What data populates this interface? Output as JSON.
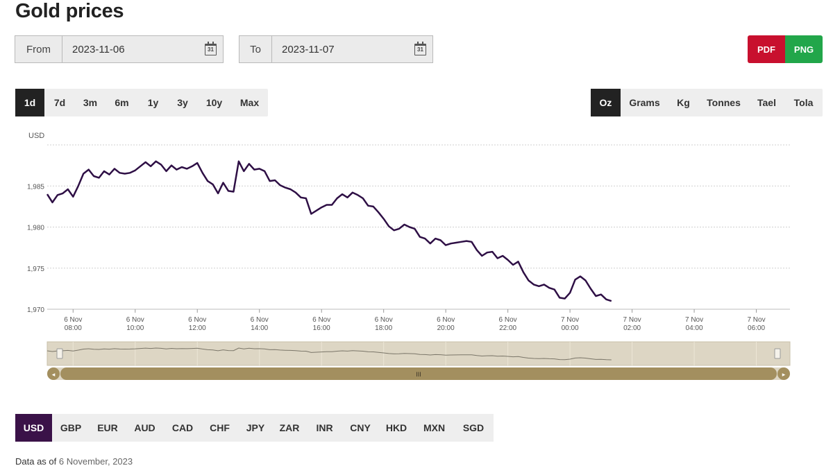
{
  "page": {
    "title": "Gold prices"
  },
  "range": {
    "from_label": "From",
    "from_value": "2023-11-06",
    "to_label": "To",
    "to_value": "2023-11-07",
    "calendar_glyph": "31"
  },
  "export": {
    "pdf": "PDF",
    "png": "PNG"
  },
  "periods": [
    "1d",
    "7d",
    "3m",
    "6m",
    "1y",
    "3y",
    "10y",
    "Max"
  ],
  "active_period": "1d",
  "units": [
    "Oz",
    "Grams",
    "Kg",
    "Tonnes",
    "Tael",
    "Tola"
  ],
  "active_unit": "Oz",
  "currencies": [
    "USD",
    "GBP",
    "EUR",
    "AUD",
    "CAD",
    "CHF",
    "JPY",
    "ZAR",
    "INR",
    "CNY",
    "HKD",
    "MXN",
    "SGD"
  ],
  "active_currency": "USD",
  "footer": {
    "prefix": "Data as of",
    "date": "6 November, 2023"
  },
  "navigator": {
    "handle_glyph": "III",
    "left_arrow": "◂",
    "right_arrow": "▸"
  },
  "chart_data": {
    "type": "line",
    "ylabel": "USD",
    "ylim": [
      1970,
      1990
    ],
    "yticks": [
      1970,
      1975,
      1980,
      1985
    ],
    "ytick_labels": [
      "1,970",
      "1,975",
      "1,980",
      "1,985"
    ],
    "x_start": "6 Nov 07:10",
    "x_end": "7 Nov 07:05",
    "xticks": [
      {
        "t": "6 Nov 08:00",
        "l1": "6 Nov",
        "l2": "08:00"
      },
      {
        "t": "6 Nov 10:00",
        "l1": "6 Nov",
        "l2": "10:00"
      },
      {
        "t": "6 Nov 12:00",
        "l1": "6 Nov",
        "l2": "12:00"
      },
      {
        "t": "6 Nov 14:00",
        "l1": "6 Nov",
        "l2": "14:00"
      },
      {
        "t": "6 Nov 16:00",
        "l1": "6 Nov",
        "l2": "16:00"
      },
      {
        "t": "6 Nov 18:00",
        "l1": "6 Nov",
        "l2": "18:00"
      },
      {
        "t": "6 Nov 20:00",
        "l1": "6 Nov",
        "l2": "20:00"
      },
      {
        "t": "6 Nov 22:00",
        "l1": "6 Nov",
        "l2": "22:00"
      },
      {
        "t": "7 Nov 00:00",
        "l1": "7 Nov",
        "l2": "00:00"
      },
      {
        "t": "7 Nov 02:00",
        "l1": "7 Nov",
        "l2": "02:00"
      },
      {
        "t": "7 Nov 04:00",
        "l1": "7 Nov",
        "l2": "04:00"
      },
      {
        "t": "7 Nov 06:00",
        "l1": "7 Nov",
        "l2": "06:00"
      }
    ],
    "series": [
      {
        "color": "#2e0f45",
        "points": [
          [
            "6 Nov 07:10",
            1984.0
          ],
          [
            "6 Nov 07:20",
            1983.0
          ],
          [
            "6 Nov 07:30",
            1983.9
          ],
          [
            "6 Nov 07:40",
            1984.1
          ],
          [
            "6 Nov 07:50",
            1984.6
          ],
          [
            "6 Nov 08:00",
            1983.7
          ],
          [
            "6 Nov 08:10",
            1985.0
          ],
          [
            "6 Nov 08:20",
            1986.5
          ],
          [
            "6 Nov 08:30",
            1987.0
          ],
          [
            "6 Nov 08:40",
            1986.2
          ],
          [
            "6 Nov 08:50",
            1986.0
          ],
          [
            "6 Nov 09:00",
            1986.8
          ],
          [
            "6 Nov 09:10",
            1986.4
          ],
          [
            "6 Nov 09:20",
            1987.1
          ],
          [
            "6 Nov 09:30",
            1986.6
          ],
          [
            "6 Nov 09:40",
            1986.5
          ],
          [
            "6 Nov 09:50",
            1986.6
          ],
          [
            "6 Nov 10:00",
            1986.9
          ],
          [
            "6 Nov 10:10",
            1987.4
          ],
          [
            "6 Nov 10:20",
            1987.9
          ],
          [
            "6 Nov 10:30",
            1987.4
          ],
          [
            "6 Nov 10:40",
            1988.0
          ],
          [
            "6 Nov 10:50",
            1987.6
          ],
          [
            "6 Nov 11:00",
            1986.8
          ],
          [
            "6 Nov 11:10",
            1987.5
          ],
          [
            "6 Nov 11:20",
            1987.0
          ],
          [
            "6 Nov 11:30",
            1987.3
          ],
          [
            "6 Nov 11:40",
            1987.1
          ],
          [
            "6 Nov 11:50",
            1987.4
          ],
          [
            "6 Nov 12:00",
            1987.8
          ],
          [
            "6 Nov 12:10",
            1986.6
          ],
          [
            "6 Nov 12:20",
            1985.6
          ],
          [
            "6 Nov 12:30",
            1985.2
          ],
          [
            "6 Nov 12:40",
            1984.1
          ],
          [
            "6 Nov 12:50",
            1985.4
          ],
          [
            "6 Nov 13:00",
            1984.4
          ],
          [
            "6 Nov 13:10",
            1984.3
          ],
          [
            "6 Nov 13:20",
            1988.0
          ],
          [
            "6 Nov 13:30",
            1986.8
          ],
          [
            "6 Nov 13:40",
            1987.7
          ],
          [
            "6 Nov 13:50",
            1987.0
          ],
          [
            "6 Nov 14:00",
            1987.1
          ],
          [
            "6 Nov 14:10",
            1986.8
          ],
          [
            "6 Nov 14:20",
            1985.6
          ],
          [
            "6 Nov 14:30",
            1985.7
          ],
          [
            "6 Nov 14:40",
            1985.1
          ],
          [
            "6 Nov 14:50",
            1984.8
          ],
          [
            "6 Nov 15:00",
            1984.6
          ],
          [
            "6 Nov 15:10",
            1984.2
          ],
          [
            "6 Nov 15:20",
            1983.6
          ],
          [
            "6 Nov 15:30",
            1983.5
          ],
          [
            "6 Nov 15:40",
            1981.6
          ],
          [
            "6 Nov 15:50",
            1982.0
          ],
          [
            "6 Nov 16:00",
            1982.4
          ],
          [
            "6 Nov 16:10",
            1982.7
          ],
          [
            "6 Nov 16:20",
            1982.7
          ],
          [
            "6 Nov 16:30",
            1983.5
          ],
          [
            "6 Nov 16:40",
            1984.0
          ],
          [
            "6 Nov 16:50",
            1983.6
          ],
          [
            "6 Nov 17:00",
            1984.2
          ],
          [
            "6 Nov 17:10",
            1983.9
          ],
          [
            "6 Nov 17:20",
            1983.5
          ],
          [
            "6 Nov 17:30",
            1982.6
          ],
          [
            "6 Nov 17:40",
            1982.5
          ],
          [
            "6 Nov 17:50",
            1981.8
          ],
          [
            "6 Nov 18:00",
            1981.0
          ],
          [
            "6 Nov 18:10",
            1980.1
          ],
          [
            "6 Nov 18:20",
            1979.6
          ],
          [
            "6 Nov 18:30",
            1979.8
          ],
          [
            "6 Nov 18:40",
            1980.3
          ],
          [
            "6 Nov 18:50",
            1980.0
          ],
          [
            "6 Nov 19:00",
            1979.8
          ],
          [
            "6 Nov 19:10",
            1978.8
          ],
          [
            "6 Nov 19:20",
            1978.6
          ],
          [
            "6 Nov 19:30",
            1978.0
          ],
          [
            "6 Nov 19:40",
            1978.6
          ],
          [
            "6 Nov 19:50",
            1978.4
          ],
          [
            "6 Nov 20:00",
            1977.8
          ],
          [
            "6 Nov 20:10",
            1978.0
          ],
          [
            "6 Nov 20:20",
            1978.1
          ],
          [
            "6 Nov 20:30",
            1978.2
          ],
          [
            "6 Nov 20:40",
            1978.3
          ],
          [
            "6 Nov 20:50",
            1978.2
          ],
          [
            "6 Nov 21:00",
            1977.2
          ],
          [
            "6 Nov 21:10",
            1976.5
          ],
          [
            "6 Nov 21:20",
            1976.9
          ],
          [
            "6 Nov 21:30",
            1977.0
          ],
          [
            "6 Nov 21:40",
            1976.2
          ],
          [
            "6 Nov 21:50",
            1976.5
          ],
          [
            "6 Nov 22:00",
            1976.0
          ],
          [
            "6 Nov 22:10",
            1975.4
          ],
          [
            "6 Nov 22:20",
            1975.8
          ],
          [
            "6 Nov 22:30",
            1974.5
          ],
          [
            "6 Nov 22:40",
            1973.5
          ],
          [
            "6 Nov 22:50",
            1973.0
          ],
          [
            "6 Nov 23:00",
            1972.8
          ],
          [
            "6 Nov 23:10",
            1973.0
          ],
          [
            "6 Nov 23:20",
            1972.6
          ],
          [
            "6 Nov 23:30",
            1972.4
          ],
          [
            "6 Nov 23:40",
            1971.4
          ],
          [
            "6 Nov 23:50",
            1971.3
          ],
          [
            "7 Nov 00:00",
            1972.0
          ],
          [
            "7 Nov 00:10",
            1973.6
          ],
          [
            "7 Nov 00:20",
            1974.0
          ],
          [
            "7 Nov 00:30",
            1973.5
          ],
          [
            "7 Nov 00:40",
            1972.5
          ],
          [
            "7 Nov 00:50",
            1971.6
          ],
          [
            "7 Nov 01:00",
            1971.8
          ],
          [
            "7 Nov 01:10",
            1971.2
          ],
          [
            "7 Nov 01:20",
            1971.0
          ]
        ]
      }
    ]
  }
}
